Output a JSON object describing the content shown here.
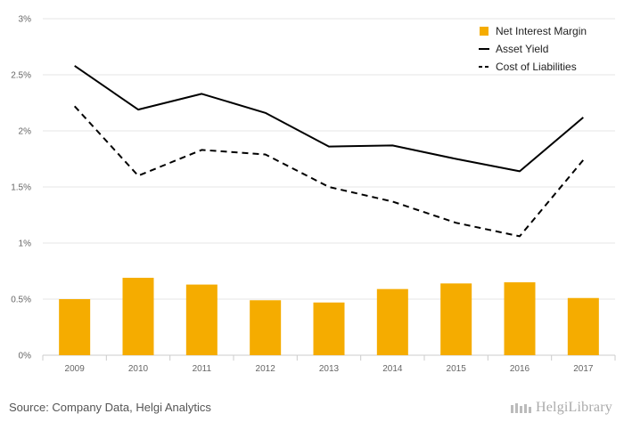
{
  "chart_data": {
    "type": "bar+line",
    "categories": [
      "2009",
      "2010",
      "2011",
      "2012",
      "2013",
      "2014",
      "2015",
      "2016",
      "2017"
    ],
    "series": [
      {
        "name": "Net Interest Margin",
        "kind": "bar",
        "color": "#f5ac00",
        "values": [
          0.5,
          0.69,
          0.63,
          0.49,
          0.47,
          0.59,
          0.64,
          0.65,
          0.51
        ]
      },
      {
        "name": "Asset Yield",
        "kind": "line",
        "dash": "solid",
        "color": "#000000",
        "values": [
          2.58,
          2.19,
          2.33,
          2.16,
          1.86,
          1.87,
          1.75,
          1.64,
          2.12
        ]
      },
      {
        "name": "Cost of Liabilities",
        "kind": "line",
        "dash": "dashed",
        "color": "#000000",
        "values": [
          2.22,
          1.6,
          1.83,
          1.79,
          1.5,
          1.37,
          1.18,
          1.06,
          1.74
        ]
      }
    ],
    "ylim": [
      0,
      3
    ],
    "yticks": [
      0,
      0.5,
      1,
      1.5,
      2,
      2.5,
      3
    ],
    "ytick_labels": [
      "0%",
      "0.5%",
      "1%",
      "1.5%",
      "2%",
      "2.5%",
      "3%"
    ],
    "grid": true,
    "legend_position": "top-right"
  },
  "source": "Source: Company Data, Helgi Analytics",
  "brand": "HelgiLibrary"
}
